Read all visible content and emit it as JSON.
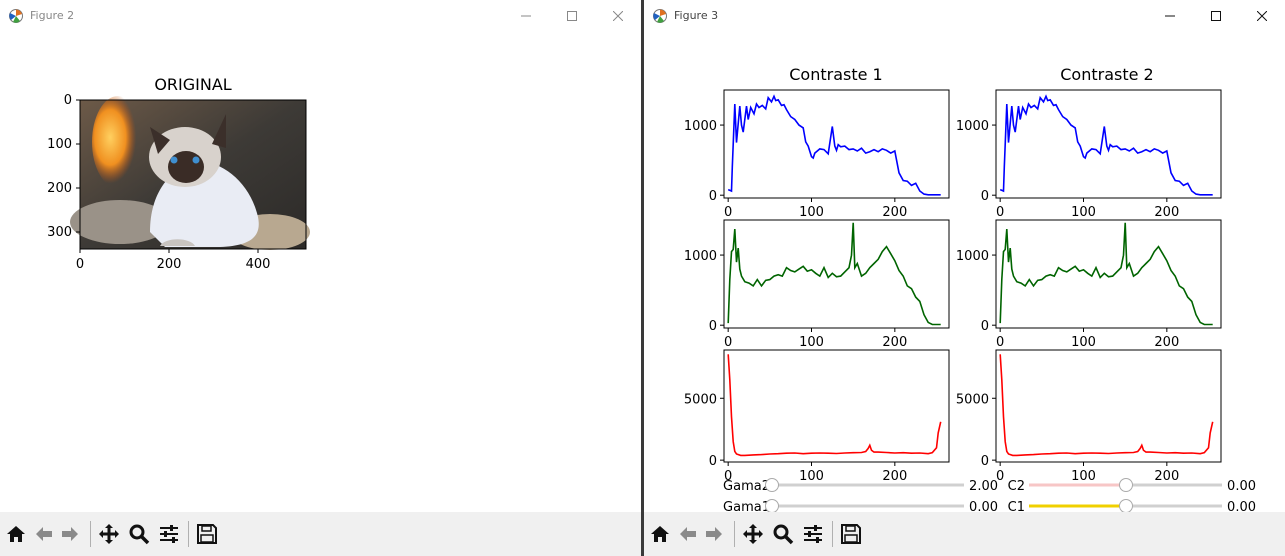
{
  "figure2": {
    "window_title": "Figure 2",
    "axes_title": "ORIGINAL",
    "yticks": [
      "0",
      "100",
      "200",
      "300"
    ],
    "xticks": [
      "0",
      "200",
      "400"
    ]
  },
  "figure3": {
    "window_title": "Figure 3",
    "col_titles": [
      "Contraste 1",
      "Contraste 2"
    ],
    "sliders": [
      {
        "label": "Gama2",
        "value": "2.00",
        "fraction": 0.0,
        "color": "#d0d0d0"
      },
      {
        "label": "Gama1",
        "value": "0.00",
        "fraction": 0.0,
        "color": "#d0d0d0"
      },
      {
        "label": "C2",
        "value": "0.00",
        "fraction": 0.5,
        "color": "#f7c6c6"
      },
      {
        "label": "C1",
        "value": "0.00",
        "fraction": 0.5,
        "color": "#f0d000"
      }
    ]
  },
  "chart_data": [
    {
      "type": "line",
      "name": "contraste1-blue",
      "title": "Contraste 1",
      "xlim": [
        -5,
        265
      ],
      "ylim": [
        -40,
        1500
      ],
      "xticks": [
        "0",
        "100",
        "200"
      ],
      "yticks": [
        "0",
        "1000"
      ],
      "ytick_values": [
        0,
        1000
      ],
      "color": "#0000ff",
      "x": [
        0,
        4,
        5,
        8,
        10,
        14,
        16,
        18,
        22,
        24,
        27,
        31,
        34,
        37,
        41,
        45,
        48,
        52,
        55,
        57,
        60,
        64,
        67,
        70,
        75,
        80,
        85,
        90,
        93,
        96,
        100,
        102,
        104,
        110,
        115,
        120,
        125,
        128,
        130,
        132,
        135,
        140,
        145,
        150,
        155,
        160,
        165,
        170,
        175,
        180,
        185,
        190,
        195,
        200,
        205,
        210,
        215,
        220,
        225,
        230,
        235,
        240,
        245,
        250,
        255
      ],
      "y": [
        80,
        60,
        400,
        1300,
        750,
        1270,
        1000,
        900,
        1270,
        1080,
        1250,
        1160,
        1300,
        1250,
        1280,
        1230,
        1390,
        1330,
        1410,
        1350,
        1360,
        1280,
        1290,
        1220,
        1120,
        1080,
        1000,
        960,
        760,
        700,
        550,
        530,
        600,
        660,
        650,
        590,
        980,
        700,
        640,
        720,
        690,
        700,
        650,
        660,
        630,
        670,
        600,
        620,
        650,
        620,
        660,
        640,
        600,
        630,
        320,
        210,
        200,
        140,
        170,
        60,
        15,
        5,
        5,
        5,
        5
      ]
    },
    {
      "type": "line",
      "name": "contraste2-blue",
      "title": "Contraste 2",
      "xlim": [
        -5,
        265
      ],
      "ylim": [
        -40,
        1500
      ],
      "xticks": [
        "0",
        "100",
        "200"
      ],
      "yticks": [
        "0",
        "1000"
      ],
      "ytick_values": [
        0,
        1000
      ],
      "color": "#0000ff",
      "x": [
        0,
        4,
        5,
        8,
        10,
        14,
        16,
        18,
        22,
        24,
        27,
        31,
        34,
        37,
        41,
        45,
        48,
        52,
        55,
        57,
        60,
        64,
        67,
        70,
        75,
        80,
        85,
        90,
        93,
        96,
        100,
        102,
        104,
        110,
        115,
        120,
        125,
        128,
        130,
        132,
        135,
        140,
        145,
        150,
        155,
        160,
        165,
        170,
        175,
        180,
        185,
        190,
        195,
        200,
        205,
        210,
        215,
        220,
        225,
        230,
        235,
        240,
        245,
        250,
        255
      ],
      "y": [
        80,
        60,
        400,
        1300,
        750,
        1270,
        1000,
        900,
        1270,
        1080,
        1250,
        1160,
        1300,
        1250,
        1280,
        1230,
        1390,
        1330,
        1410,
        1350,
        1360,
        1280,
        1290,
        1220,
        1120,
        1080,
        1000,
        960,
        760,
        700,
        550,
        530,
        600,
        660,
        650,
        590,
        980,
        700,
        640,
        720,
        690,
        700,
        650,
        660,
        630,
        670,
        600,
        620,
        650,
        620,
        660,
        640,
        600,
        630,
        320,
        210,
        200,
        140,
        170,
        60,
        15,
        5,
        5,
        5,
        5
      ]
    },
    {
      "type": "line",
      "name": "contraste1-green",
      "xlim": [
        -5,
        265
      ],
      "ylim": [
        -40,
        1500
      ],
      "xticks": [
        "0",
        "100",
        "200"
      ],
      "yticks": [
        "0",
        "1000"
      ],
      "ytick_values": [
        0,
        1000
      ],
      "color": "#006400",
      "x": [
        0,
        2,
        4,
        6,
        8,
        10,
        12,
        14,
        16,
        20,
        25,
        30,
        35,
        40,
        45,
        50,
        55,
        60,
        65,
        70,
        75,
        80,
        85,
        90,
        95,
        100,
        105,
        110,
        115,
        120,
        125,
        130,
        135,
        140,
        145,
        148,
        150,
        152,
        155,
        160,
        165,
        170,
        175,
        180,
        185,
        190,
        195,
        200,
        205,
        210,
        215,
        220,
        225,
        230,
        235,
        240,
        245,
        250,
        255
      ],
      "y": [
        30,
        650,
        1050,
        1080,
        1370,
        900,
        1100,
        800,
        700,
        620,
        600,
        560,
        650,
        560,
        640,
        650,
        700,
        720,
        700,
        820,
        780,
        760,
        800,
        840,
        770,
        790,
        740,
        700,
        820,
        680,
        740,
        690,
        700,
        760,
        820,
        1000,
        1460,
        820,
        880,
        700,
        740,
        820,
        880,
        940,
        1050,
        1120,
        1020,
        920,
        780,
        700,
        560,
        520,
        400,
        340,
        150,
        40,
        10,
        10,
        10
      ]
    },
    {
      "type": "line",
      "name": "contraste2-green",
      "xlim": [
        -5,
        265
      ],
      "ylim": [
        -40,
        1500
      ],
      "xticks": [
        "0",
        "100",
        "200"
      ],
      "yticks": [
        "0",
        "1000"
      ],
      "ytick_values": [
        0,
        1000
      ],
      "color": "#006400",
      "x": [
        0,
        2,
        4,
        6,
        8,
        10,
        12,
        14,
        16,
        20,
        25,
        30,
        35,
        40,
        45,
        50,
        55,
        60,
        65,
        70,
        75,
        80,
        85,
        90,
        95,
        100,
        105,
        110,
        115,
        120,
        125,
        130,
        135,
        140,
        145,
        148,
        150,
        152,
        155,
        160,
        165,
        170,
        175,
        180,
        185,
        190,
        195,
        200,
        205,
        210,
        215,
        220,
        225,
        230,
        235,
        240,
        245,
        250,
        255
      ],
      "y": [
        30,
        650,
        1050,
        1080,
        1370,
        900,
        1100,
        800,
        700,
        620,
        600,
        560,
        650,
        560,
        640,
        650,
        700,
        720,
        700,
        820,
        780,
        760,
        800,
        840,
        770,
        790,
        740,
        700,
        820,
        680,
        740,
        690,
        700,
        760,
        820,
        1000,
        1460,
        820,
        880,
        700,
        740,
        820,
        880,
        940,
        1050,
        1120,
        1020,
        920,
        780,
        700,
        560,
        520,
        400,
        340,
        150,
        40,
        10,
        10,
        10
      ]
    },
    {
      "type": "line",
      "name": "contraste1-red",
      "xlim": [
        -5,
        265
      ],
      "ylim": [
        -150,
        8900
      ],
      "xticks": [
        "0",
        "100",
        "200"
      ],
      "yticks": [
        "0",
        "5000"
      ],
      "ytick_values": [
        0,
        5000
      ],
      "color": "#ff0000",
      "x": [
        0,
        2,
        4,
        6,
        8,
        10,
        15,
        20,
        30,
        40,
        50,
        60,
        70,
        80,
        90,
        100,
        110,
        120,
        130,
        140,
        150,
        160,
        165,
        168,
        170,
        172,
        175,
        180,
        190,
        200,
        210,
        220,
        230,
        240,
        245,
        250,
        252,
        255
      ],
      "y": [
        8550,
        6500,
        3500,
        1500,
        700,
        500,
        380,
        380,
        420,
        450,
        500,
        520,
        560,
        580,
        520,
        560,
        580,
        560,
        540,
        580,
        600,
        620,
        700,
        950,
        1200,
        800,
        650,
        650,
        620,
        580,
        600,
        560,
        580,
        520,
        600,
        1000,
        2200,
        3100
      ]
    },
    {
      "type": "line",
      "name": "contraste2-red",
      "xlim": [
        -5,
        265
      ],
      "ylim": [
        -150,
        8900
      ],
      "xticks": [
        "0",
        "100",
        "200"
      ],
      "yticks": [
        "0",
        "5000"
      ],
      "ytick_values": [
        0,
        5000
      ],
      "color": "#ff0000",
      "x": [
        0,
        2,
        4,
        6,
        8,
        10,
        15,
        20,
        30,
        40,
        50,
        60,
        70,
        80,
        90,
        100,
        110,
        120,
        130,
        140,
        150,
        160,
        165,
        168,
        170,
        172,
        175,
        180,
        190,
        200,
        210,
        220,
        230,
        240,
        245,
        250,
        252,
        255
      ],
      "y": [
        8550,
        6500,
        3500,
        1500,
        700,
        500,
        380,
        380,
        420,
        450,
        500,
        520,
        560,
        580,
        520,
        560,
        580,
        560,
        540,
        580,
        600,
        620,
        700,
        950,
        1200,
        800,
        650,
        650,
        620,
        580,
        600,
        560,
        580,
        520,
        600,
        1000,
        2200,
        3100
      ]
    }
  ]
}
